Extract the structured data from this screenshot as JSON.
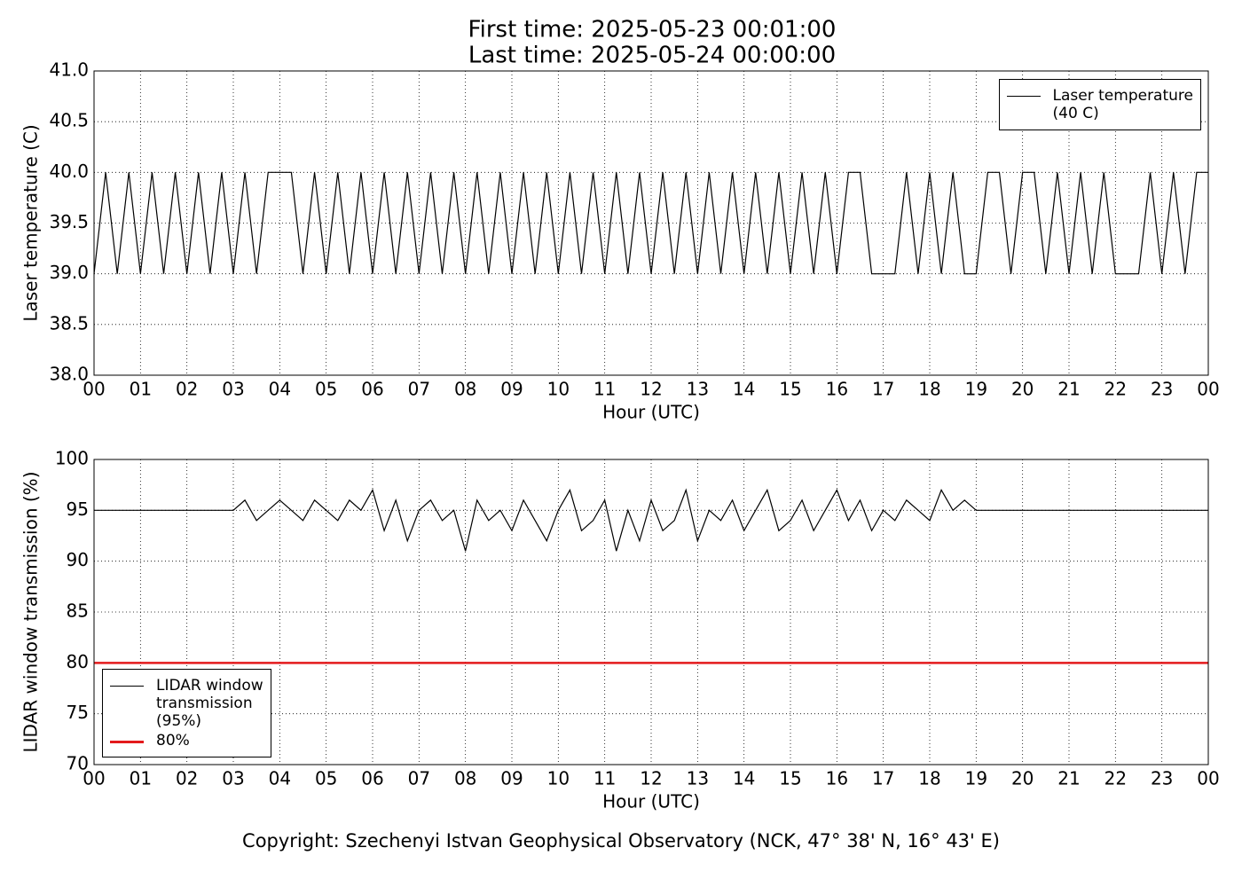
{
  "chart_data": [
    {
      "type": "line",
      "title": "First time: 2025-05-23 00:01:00",
      "subtitle": "Last time: 2025-05-24 00:00:00",
      "x_label": "Hour (UTC)",
      "y_label": "Laser temperature (C)",
      "xlim": [
        0,
        24
      ],
      "xticks": [
        {
          "value": 0,
          "label": "00"
        },
        {
          "value": 1,
          "label": "01"
        },
        {
          "value": 2,
          "label": "02"
        },
        {
          "value": 3,
          "label": "03"
        },
        {
          "value": 4,
          "label": "04"
        },
        {
          "value": 5,
          "label": "05"
        },
        {
          "value": 6,
          "label": "06"
        },
        {
          "value": 7,
          "label": "07"
        },
        {
          "value": 8,
          "label": "08"
        },
        {
          "value": 9,
          "label": "09"
        },
        {
          "value": 10,
          "label": "10"
        },
        {
          "value": 11,
          "label": "11"
        },
        {
          "value": 12,
          "label": "12"
        },
        {
          "value": 13,
          "label": "13"
        },
        {
          "value": 14,
          "label": "14"
        },
        {
          "value": 15,
          "label": "15"
        },
        {
          "value": 16,
          "label": "16"
        },
        {
          "value": 17,
          "label": "17"
        },
        {
          "value": 18,
          "label": "18"
        },
        {
          "value": 19,
          "label": "19"
        },
        {
          "value": 20,
          "label": "20"
        },
        {
          "value": 21,
          "label": "21"
        },
        {
          "value": 22,
          "label": "22"
        },
        {
          "value": 23,
          "label": "23"
        },
        {
          "value": 24,
          "label": "00"
        }
      ],
      "ylim": [
        38,
        41
      ],
      "yticks": [
        {
          "value": 38,
          "label": "38.0"
        },
        38.5,
        {
          "value": 39,
          "label": "39.0"
        },
        39.5,
        {
          "value": 40,
          "label": "40.0"
        },
        40.5,
        {
          "value": 41,
          "label": "41.0"
        }
      ],
      "grid": true,
      "legend": "upper right",
      "x": [
        0,
        0.25,
        0.5,
        0.75,
        1,
        1.25,
        1.5,
        1.75,
        2,
        2.25,
        2.5,
        2.75,
        3,
        3.25,
        3.5,
        3.75,
        4,
        4.25,
        4.5,
        4.75,
        5,
        5.25,
        5.5,
        5.75,
        6,
        6.25,
        6.5,
        6.75,
        7,
        7.25,
        7.5,
        7.75,
        8,
        8.25,
        8.5,
        8.75,
        9,
        9.25,
        9.5,
        9.75,
        10,
        10.25,
        10.5,
        10.75,
        11,
        11.25,
        11.5,
        11.75,
        12,
        12.25,
        12.5,
        12.75,
        13,
        13.25,
        13.5,
        13.75,
        14,
        14.25,
        14.5,
        14.75,
        15,
        15.25,
        15.5,
        15.75,
        16,
        16.25,
        16.5,
        16.75,
        17,
        17.25,
        17.5,
        17.75,
        18,
        18.25,
        18.5,
        18.75,
        19,
        19.25,
        19.5,
        19.75,
        20,
        20.25,
        20.5,
        20.75,
        21,
        21.25,
        21.5,
        21.75,
        22,
        22.25,
        22.5,
        22.75,
        23,
        23.25,
        23.5,
        23.75,
        24
      ],
      "series": [
        {
          "name": "Laser temperature\n(40 C)",
          "color": "#000000",
          "values": [
            39,
            40,
            39,
            40,
            39,
            40,
            39,
            40,
            39,
            40,
            39,
            40,
            39,
            40,
            39,
            40,
            40,
            40,
            39,
            40,
            39,
            40,
            39,
            40,
            39,
            40,
            39,
            40,
            39,
            40,
            39,
            40,
            39,
            40,
            39,
            40,
            39,
            40,
            39,
            40,
            39,
            40,
            39,
            40,
            39,
            40,
            39,
            40,
            39,
            40,
            39,
            40,
            39,
            40,
            39,
            40,
            39,
            40,
            39,
            40,
            39,
            40,
            39,
            40,
            39,
            40,
            40,
            39,
            39,
            39,
            40,
            39,
            40,
            39,
            40,
            39,
            39,
            40,
            40,
            39,
            40,
            40,
            39,
            40,
            39,
            40,
            39,
            40,
            39,
            39,
            39,
            40,
            39,
            40,
            39,
            40,
            40
          ]
        }
      ]
    },
    {
      "type": "line",
      "x_label": "Hour (UTC)",
      "y_label": "LIDAR window transmission (%)",
      "xlim": [
        0,
        24
      ],
      "xticks": [
        {
          "value": 0,
          "label": "00"
        },
        {
          "value": 1,
          "label": "01"
        },
        {
          "value": 2,
          "label": "02"
        },
        {
          "value": 3,
          "label": "03"
        },
        {
          "value": 4,
          "label": "04"
        },
        {
          "value": 5,
          "label": "05"
        },
        {
          "value": 6,
          "label": "06"
        },
        {
          "value": 7,
          "label": "07"
        },
        {
          "value": 8,
          "label": "08"
        },
        {
          "value": 9,
          "label": "09"
        },
        {
          "value": 10,
          "label": "10"
        },
        {
          "value": 11,
          "label": "11"
        },
        {
          "value": 12,
          "label": "12"
        },
        {
          "value": 13,
          "label": "13"
        },
        {
          "value": 14,
          "label": "14"
        },
        {
          "value": 15,
          "label": "15"
        },
        {
          "value": 16,
          "label": "16"
        },
        {
          "value": 17,
          "label": "17"
        },
        {
          "value": 18,
          "label": "18"
        },
        {
          "value": 19,
          "label": "19"
        },
        {
          "value": 20,
          "label": "20"
        },
        {
          "value": 21,
          "label": "21"
        },
        {
          "value": 22,
          "label": "22"
        },
        {
          "value": 23,
          "label": "23"
        },
        {
          "value": 24,
          "label": "00"
        }
      ],
      "ylim": [
        70,
        100
      ],
      "yticks": [
        70,
        75,
        80,
        85,
        90,
        95,
        100
      ],
      "grid": true,
      "legend": "lower left",
      "x": [
        0,
        0.25,
        0.5,
        0.75,
        1,
        1.25,
        1.5,
        1.75,
        2,
        2.25,
        2.5,
        2.75,
        3,
        3.25,
        3.5,
        3.75,
        4,
        4.25,
        4.5,
        4.75,
        5,
        5.25,
        5.5,
        5.75,
        6,
        6.25,
        6.5,
        6.75,
        7,
        7.25,
        7.5,
        7.75,
        8,
        8.25,
        8.5,
        8.75,
        9,
        9.25,
        9.5,
        9.75,
        10,
        10.25,
        10.5,
        10.75,
        11,
        11.25,
        11.5,
        11.75,
        12,
        12.25,
        12.5,
        12.75,
        13,
        13.25,
        13.5,
        13.75,
        14,
        14.25,
        14.5,
        14.75,
        15,
        15.25,
        15.5,
        15.75,
        16,
        16.25,
        16.5,
        16.75,
        17,
        17.25,
        17.5,
        17.75,
        18,
        18.25,
        18.5,
        18.75,
        19,
        19.25,
        19.5,
        19.75,
        20,
        20.25,
        20.5,
        20.75,
        21,
        21.25,
        21.5,
        21.75,
        22,
        22.25,
        22.5,
        22.75,
        23,
        23.25,
        23.5,
        23.75,
        24
      ],
      "series": [
        {
          "name": "LIDAR window\ntransmission\n(95%)",
          "color": "#000000",
          "values": [
            95,
            95,
            95,
            95,
            95,
            95,
            95,
            95,
            95,
            95,
            95,
            95,
            95,
            96,
            94,
            95,
            96,
            95,
            94,
            96,
            95,
            94,
            96,
            95,
            97,
            93,
            96,
            92,
            95,
            96,
            94,
            95,
            91,
            96,
            94,
            95,
            93,
            96,
            94,
            92,
            95,
            97,
            93,
            94,
            96,
            91,
            95,
            92,
            96,
            93,
            94,
            97,
            92,
            95,
            94,
            96,
            93,
            95,
            97,
            93,
            94,
            96,
            93,
            95,
            97,
            94,
            96,
            93,
            95,
            94,
            96,
            95,
            94,
            97,
            95,
            96,
            95,
            95,
            95,
            95,
            95,
            95,
            95,
            95,
            95,
            95,
            95,
            95,
            95,
            95,
            95,
            95,
            95,
            95,
            95,
            95,
            95
          ]
        },
        {
          "name": "80%",
          "color": "#e31a1c",
          "values": [
            80,
            80,
            80,
            80,
            80,
            80,
            80,
            80,
            80,
            80,
            80,
            80,
            80,
            80,
            80,
            80,
            80,
            80,
            80,
            80,
            80,
            80,
            80,
            80,
            80,
            80,
            80,
            80,
            80,
            80,
            80,
            80,
            80,
            80,
            80,
            80,
            80,
            80,
            80,
            80,
            80,
            80,
            80,
            80,
            80,
            80,
            80,
            80,
            80,
            80,
            80,
            80,
            80,
            80,
            80,
            80,
            80,
            80,
            80,
            80,
            80,
            80,
            80,
            80,
            80,
            80,
            80,
            80,
            80,
            80,
            80,
            80,
            80,
            80,
            80,
            80,
            80,
            80,
            80,
            80,
            80,
            80,
            80,
            80,
            80,
            80,
            80,
            80,
            80,
            80,
            80,
            80,
            80,
            80,
            80,
            80,
            80
          ]
        }
      ]
    }
  ],
  "footer": "Copyright: Szechenyi Istvan Geophysical Observatory (NCK, 47° 38' N, 16° 43' E)"
}
